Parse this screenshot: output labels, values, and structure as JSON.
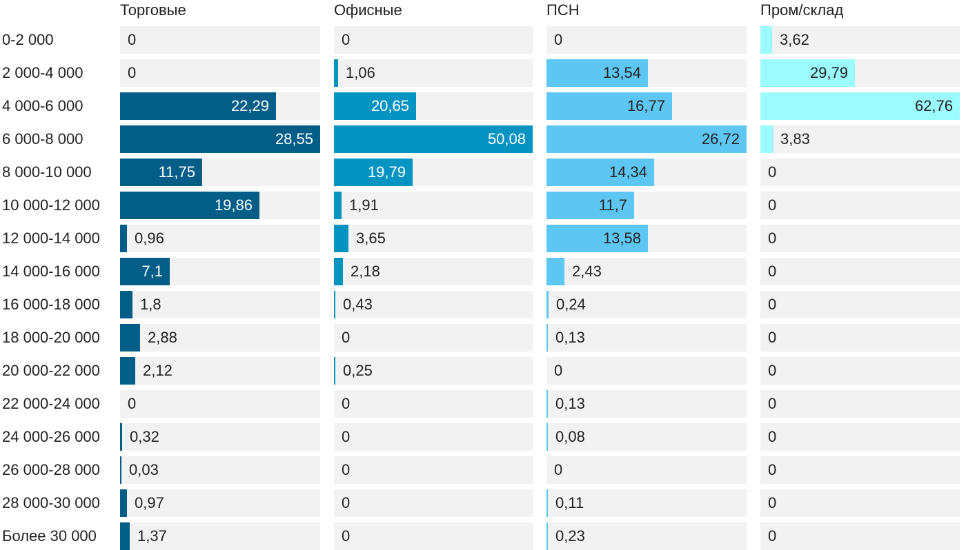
{
  "chart_data": {
    "type": "bar",
    "orientation": "horizontal",
    "layout": "small-multiples",
    "categories": [
      "0-2 000",
      "2 000-4 000",
      "4 000-6 000",
      "6 000-8 000",
      "8 000-10 000",
      "10 000-12 000",
      "12 000-14 000",
      "14 000-16 000",
      "16 000-18 000",
      "18 000-20 000",
      "20 000-22 000",
      "22 000-24 000",
      "24 000-26 000",
      "26 000-28 000",
      "28 000-30 000",
      "Более 30 000"
    ],
    "series": [
      {
        "name": "Торговые",
        "color": "#035e87",
        "xlim": [
          0,
          28.55
        ],
        "values": [
          0,
          0,
          22.29,
          28.55,
          11.75,
          19.86,
          0.96,
          7.1,
          1.8,
          2.88,
          2.12,
          0,
          0.32,
          0.03,
          0.97,
          1.37
        ],
        "labels": [
          "0",
          "0",
          "22,29",
          "28,55",
          "11,75",
          "19,86",
          "0,96",
          "7,1",
          "1,8",
          "2,88",
          "2,12",
          "0",
          "0,32",
          "0,03",
          "0,97",
          "1,37"
        ]
      },
      {
        "name": "Офисные",
        "color": "#0593c2",
        "xlim": [
          0,
          50.08
        ],
        "values": [
          0,
          1.06,
          20.65,
          50.08,
          19.79,
          1.91,
          3.65,
          2.18,
          0.43,
          0,
          0.25,
          0,
          0,
          0,
          0,
          0
        ],
        "labels": [
          "0",
          "1,06",
          "20,65",
          "50,08",
          "19,79",
          "1,91",
          "3,65",
          "2,18",
          "0,43",
          "0",
          "0,25",
          "0",
          "0",
          "0",
          "0",
          "0"
        ]
      },
      {
        "name": "ПСН",
        "color": "#5ec6f2",
        "xlim": [
          0,
          26.72
        ],
        "values": [
          0,
          13.54,
          16.77,
          26.72,
          14.34,
          11.7,
          13.58,
          2.43,
          0.24,
          0.13,
          0,
          0.13,
          0.08,
          0,
          0.11,
          0.23
        ],
        "labels": [
          "0",
          "13,54",
          "16,77",
          "26,72",
          "14,34",
          "11,7",
          "13,58",
          "2,43",
          "0,24",
          "0,13",
          "0",
          "0,13",
          "0,08",
          "0",
          "0,11",
          "0,23"
        ]
      },
      {
        "name": "Пром/склад",
        "color": "#9bfbfd",
        "xlim": [
          0,
          62.76
        ],
        "values": [
          3.62,
          29.79,
          62.76,
          3.83,
          0,
          0,
          0,
          0,
          0,
          0,
          0,
          0,
          0,
          0,
          0,
          0
        ],
        "labels": [
          "3,62",
          "29,79",
          "62,76",
          "3,83",
          "0",
          "0",
          "0",
          "0",
          "0",
          "0",
          "0",
          "0",
          "0",
          "0",
          "0",
          "0"
        ]
      }
    ],
    "background_track": "#f2f2f2",
    "grid": false,
    "legend": "none"
  }
}
